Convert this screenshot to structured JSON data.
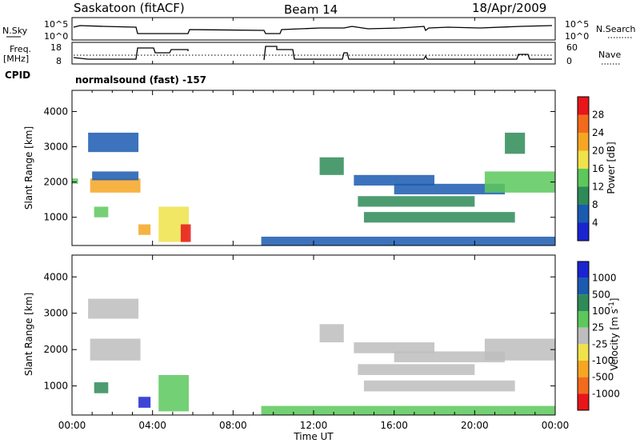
{
  "header": {
    "station": "Saskatoon (fitACF)",
    "beam": "Beam 14",
    "date": "18/Apr/2009"
  },
  "noise_panel": {
    "left_label": "N.Sky",
    "right_label": "N.Search",
    "y_ticks": [
      "10^5",
      "10^0"
    ]
  },
  "freq_panel": {
    "left_label_1": "Freq.",
    "left_label_2": "[MHz]",
    "right_label": "Nave",
    "left_ticks": [
      "18",
      "8"
    ],
    "right_ticks": [
      "60",
      "0"
    ]
  },
  "cpid": {
    "label": "CPID",
    "mode": "normalsound (fast) -157"
  },
  "colors": {
    "power": [
      "#1a24d0",
      "#1a5bb0",
      "#2e8b57",
      "#5cc85c",
      "#f0e24a",
      "#f5a623",
      "#f26b1d",
      "#e8151b"
    ],
    "velocity": [
      "#1a24d0",
      "#1a5bb0",
      "#2e8b57",
      "#5cc85c",
      "#bdbdbd",
      "#f0e24a",
      "#f5a623",
      "#f26b1d",
      "#e8151b"
    ]
  },
  "chart_data": [
    {
      "type": "heatmap",
      "panel": "power",
      "ylabel": "Slant Range [km]",
      "ylim": [
        200,
        4600
      ],
      "y_ticks": [
        1000,
        2000,
        3000,
        4000
      ],
      "colorbar_label": "Power [dB]",
      "colorbar_ticks": [
        "4",
        "8",
        "12",
        "16",
        "20",
        "24",
        "28"
      ],
      "blobs": [
        {
          "t0": 0.0,
          "t1": 0.3,
          "r0": 1950,
          "r1": 2100,
          "level": 3
        },
        {
          "t0": 0.8,
          "t1": 3.3,
          "r0": 2850,
          "r1": 3400,
          "level": 1
        },
        {
          "t0": 0.9,
          "t1": 3.4,
          "r0": 1700,
          "r1": 2100,
          "level": 5
        },
        {
          "t0": 1.0,
          "t1": 3.3,
          "r0": 2050,
          "r1": 2300,
          "level": 1
        },
        {
          "t0": 1.1,
          "t1": 1.8,
          "r0": 1000,
          "r1": 1300,
          "level": 3
        },
        {
          "t0": 3.3,
          "t1": 3.9,
          "r0": 500,
          "r1": 800,
          "level": 5
        },
        {
          "t0": 4.3,
          "t1": 5.8,
          "r0": 300,
          "r1": 1300,
          "level": 4
        },
        {
          "t0": 5.4,
          "t1": 5.9,
          "r0": 300,
          "r1": 800,
          "level": 7
        },
        {
          "t0": 9.4,
          "t1": 24.0,
          "r0": 200,
          "r1": 450,
          "level": 1
        },
        {
          "t0": 12.3,
          "t1": 13.5,
          "r0": 2200,
          "r1": 2700,
          "level": 2
        },
        {
          "t0": 14.2,
          "t1": 20.0,
          "r0": 1300,
          "r1": 1600,
          "level": 2
        },
        {
          "t0": 14.5,
          "t1": 22.0,
          "r0": 850,
          "r1": 1150,
          "level": 2
        },
        {
          "t0": 14.0,
          "t1": 18.0,
          "r0": 1900,
          "r1": 2200,
          "level": 1
        },
        {
          "t0": 16.0,
          "t1": 21.5,
          "r0": 1650,
          "r1": 1950,
          "level": 1
        },
        {
          "t0": 20.5,
          "t1": 24.0,
          "r0": 1700,
          "r1": 2300,
          "level": 3
        },
        {
          "t0": 21.5,
          "t1": 22.5,
          "r0": 2800,
          "r1": 3400,
          "level": 2
        }
      ]
    },
    {
      "type": "heatmap",
      "panel": "velocity",
      "ylabel": "Slant Range [km]",
      "xlabel": "Time UT",
      "ylim": [
        200,
        4600
      ],
      "y_ticks": [
        1000,
        2000,
        3000,
        4000
      ],
      "x_ticks": [
        "00:00",
        "04:00",
        "08:00",
        "12:00",
        "16:00",
        "20:00",
        "00:00"
      ],
      "xlim": [
        0,
        24
      ],
      "colorbar_label": "Velocity [m s^-1]",
      "colorbar_ticks": [
        "1000",
        "500",
        "100",
        "25",
        "-25",
        "-100",
        "-500",
        "-1000"
      ],
      "blobs": [
        {
          "t0": 0.8,
          "t1": 3.3,
          "r0": 2850,
          "r1": 3400,
          "level": 4
        },
        {
          "t0": 0.9,
          "t1": 3.4,
          "r0": 1700,
          "r1": 2300,
          "level": 4
        },
        {
          "t0": 1.1,
          "t1": 1.8,
          "r0": 800,
          "r1": 1100,
          "level": 2
        },
        {
          "t0": 3.3,
          "t1": 3.9,
          "r0": 400,
          "r1": 700,
          "level": 0
        },
        {
          "t0": 4.3,
          "t1": 5.8,
          "r0": 300,
          "r1": 1300,
          "level": 3
        },
        {
          "t0": 9.4,
          "t1": 24.0,
          "r0": 200,
          "r1": 450,
          "level": 3
        },
        {
          "t0": 12.3,
          "t1": 13.5,
          "r0": 2200,
          "r1": 2700,
          "level": 4
        },
        {
          "t0": 14.2,
          "t1": 20.0,
          "r0": 1300,
          "r1": 1600,
          "level": 4
        },
        {
          "t0": 14.5,
          "t1": 22.0,
          "r0": 850,
          "r1": 1150,
          "level": 4
        },
        {
          "t0": 14.0,
          "t1": 18.0,
          "r0": 1900,
          "r1": 2200,
          "level": 4
        },
        {
          "t0": 16.0,
          "t1": 21.5,
          "r0": 1650,
          "r1": 1950,
          "level": 4
        },
        {
          "t0": 20.5,
          "t1": 24.0,
          "r0": 1700,
          "r1": 2300,
          "level": 4
        }
      ]
    }
  ]
}
